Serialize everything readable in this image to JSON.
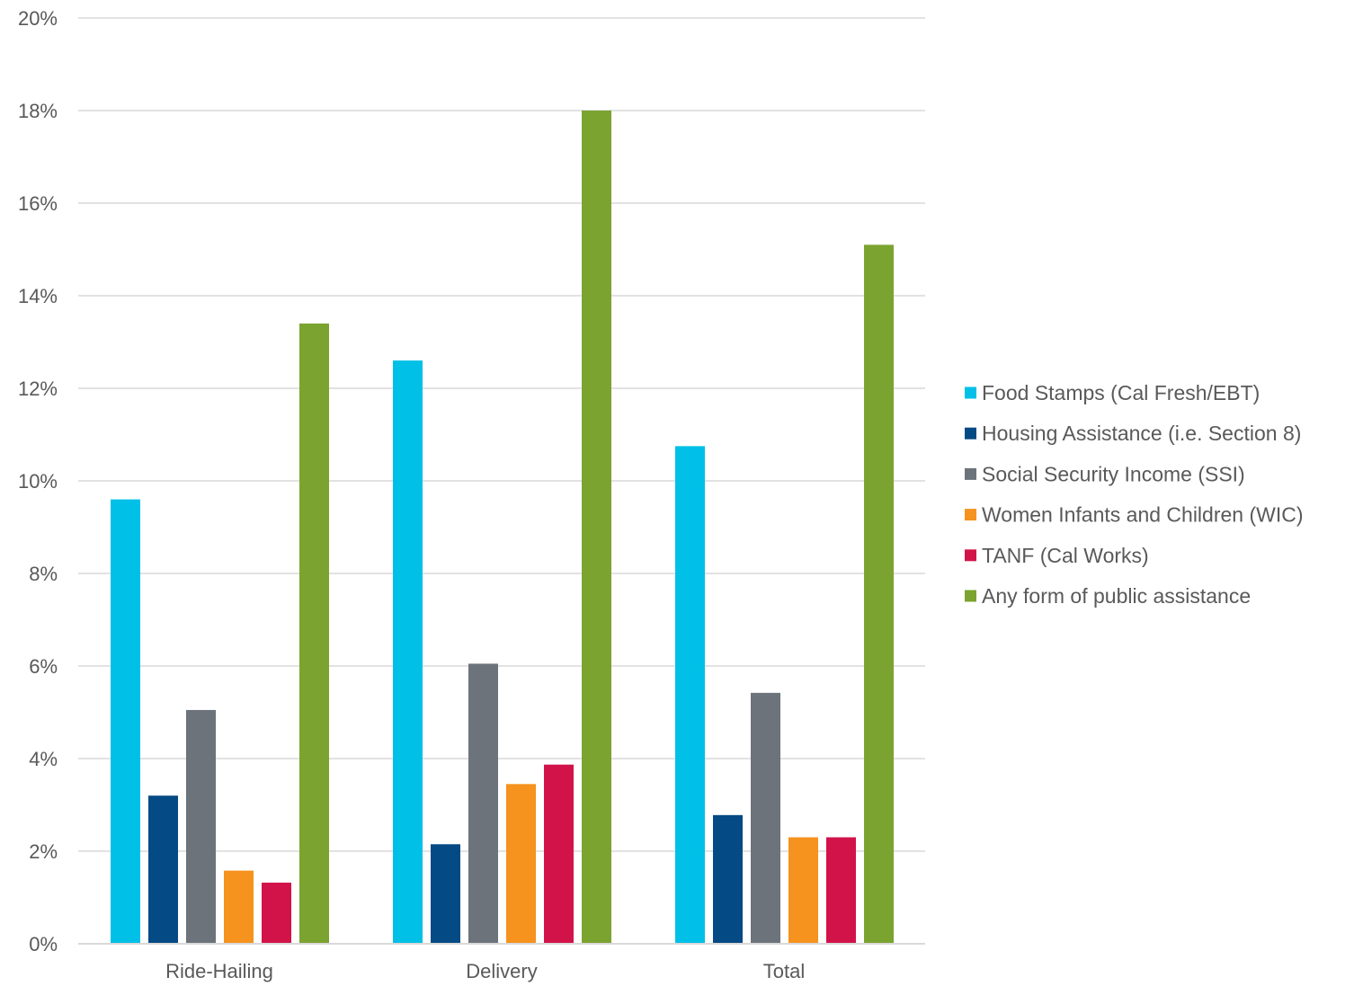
{
  "chart_data": {
    "type": "bar",
    "title": "",
    "xlabel": "",
    "ylabel": "",
    "categories": [
      "Ride-Hailing",
      "Delivery",
      "Total"
    ],
    "ylim": [
      0,
      20
    ],
    "yticks": [
      0,
      2,
      4,
      6,
      8,
      10,
      12,
      14,
      16,
      18,
      20
    ],
    "ytick_format": "%",
    "grid": true,
    "legend_position": "right",
    "series": [
      {
        "name": "Food Stamps (Cal Fresh/EBT)",
        "color": "#00C0E8",
        "values": [
          9.6,
          12.6,
          10.75
        ]
      },
      {
        "name": "Housing Assistance (i.e. Section 8)",
        "color": "#044A84",
        "values": [
          3.2,
          2.15,
          2.78
        ]
      },
      {
        "name": "Social Security Income (SSI)",
        "color": "#6C737B",
        "values": [
          5.05,
          6.05,
          5.42
        ]
      },
      {
        "name": "Women Infants and Children (WIC)",
        "color": "#F6921E",
        "values": [
          1.58,
          3.45,
          2.3
        ]
      },
      {
        "name": "TANF (Cal Works)",
        "color": "#D2134A",
        "values": [
          1.32,
          3.87,
          2.3
        ]
      },
      {
        "name": "Any form of public assistance",
        "color": "#7BA330",
        "values": [
          13.4,
          18.0,
          15.1
        ]
      }
    ]
  }
}
